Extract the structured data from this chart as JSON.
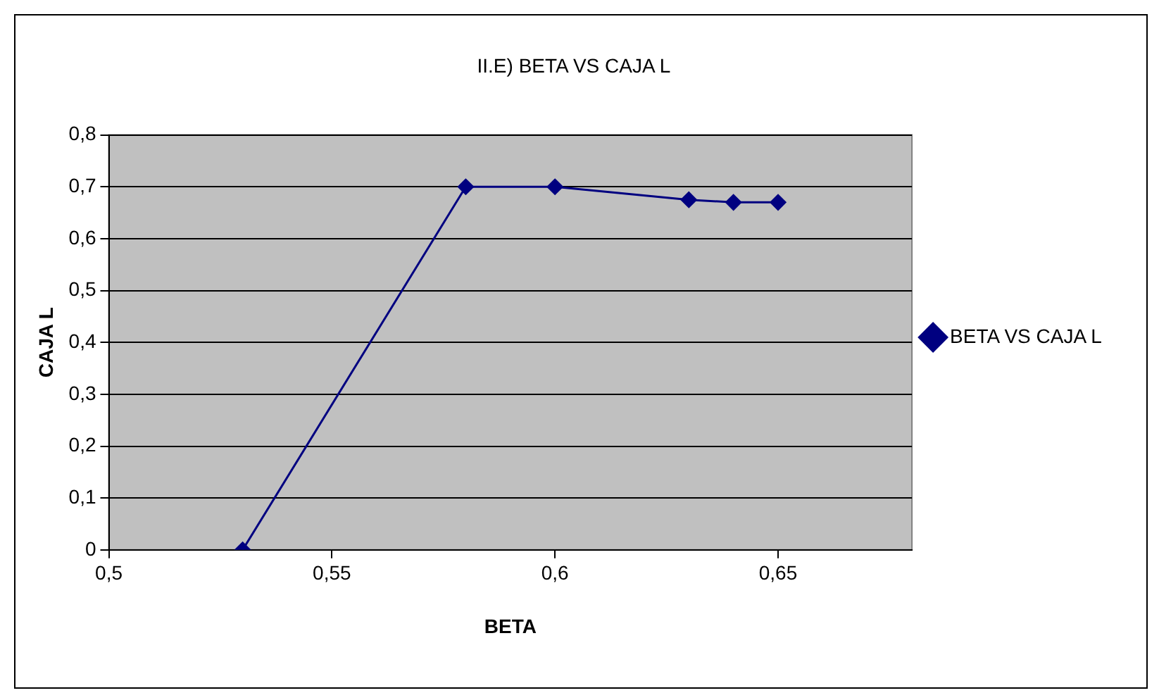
{
  "chart_data": {
    "type": "line",
    "title": "II.E) BETA VS CAJA L",
    "xlabel": "BETA",
    "ylabel": "CAJA L",
    "x": [
      0.53,
      0.58,
      0.6,
      0.63,
      0.64,
      0.65
    ],
    "series": [
      {
        "name": "BETA VS CAJA L",
        "color": "#000080",
        "values": [
          0,
          0.7,
          0.7,
          0.675,
          0.67,
          0.67
        ]
      }
    ],
    "xlim": [
      0.5,
      0.68
    ],
    "xticks": [
      {
        "value": 0.5,
        "label": "0,5"
      },
      {
        "value": 0.55,
        "label": "0,55"
      },
      {
        "value": 0.6,
        "label": "0,6"
      },
      {
        "value": 0.65,
        "label": "0,65"
      }
    ],
    "ylim": [
      0,
      0.8
    ],
    "yticks": [
      0,
      {
        "value": 0.1,
        "label": "0,1"
      },
      {
        "value": 0.2,
        "label": "0,2"
      },
      {
        "value": 0.3,
        "label": "0,3"
      },
      {
        "value": 0.4,
        "label": "0,4"
      },
      {
        "value": 0.5,
        "label": "0,5"
      },
      {
        "value": 0.6,
        "label": "0,6"
      },
      {
        "value": 0.7,
        "label": "0,7"
      },
      {
        "value": 0.8,
        "label": "0,8"
      }
    ],
    "grid": "y",
    "legend": "right",
    "marker": "diamond",
    "line_style": "solid"
  }
}
